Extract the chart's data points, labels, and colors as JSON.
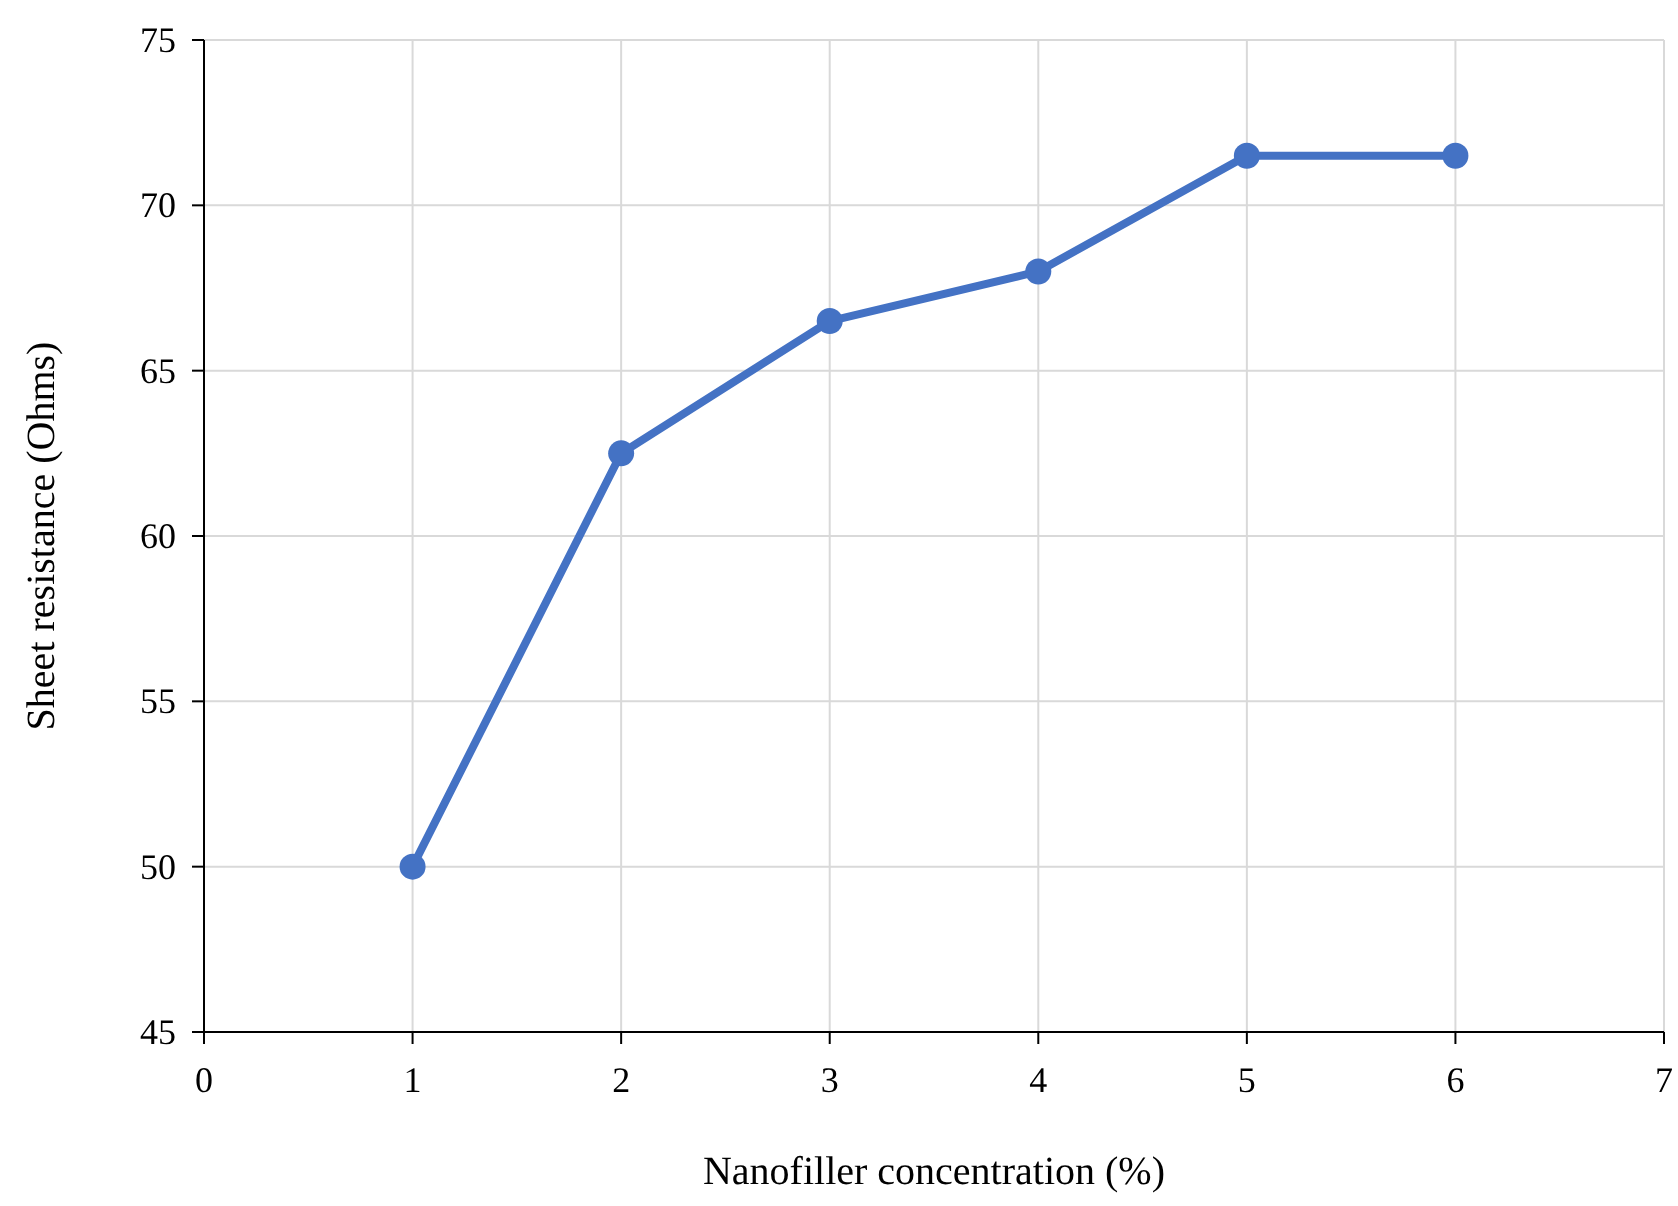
{
  "chart_data": {
    "type": "line",
    "xlabel": "Nanofiller concentration (%)",
    "ylabel": "Sheet resistance (Ohms)",
    "x": [
      1,
      2,
      3,
      4,
      5,
      6
    ],
    "series": [
      {
        "color": "#4472c4",
        "values": [
          50,
          62.5,
          66.5,
          68,
          71.5,
          71.5
        ]
      }
    ],
    "xlim": [
      0,
      7
    ],
    "xticks": [
      0,
      1,
      2,
      3,
      4,
      5,
      6,
      7
    ],
    "ylim": [
      45,
      75
    ],
    "yticks": [
      45,
      50,
      55,
      60,
      65,
      70,
      75
    ],
    "grid": true,
    "marker": "circle",
    "line_style": "solid"
  }
}
